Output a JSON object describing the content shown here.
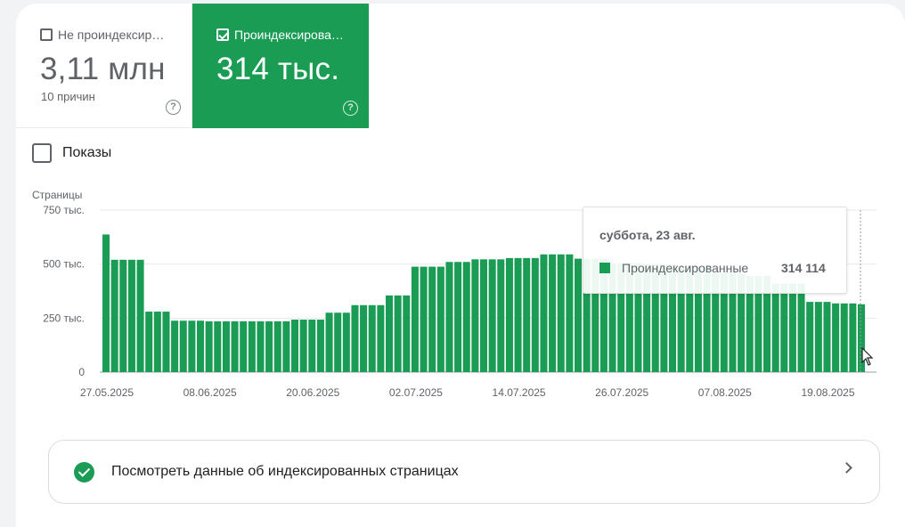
{
  "tiles": [
    {
      "label": "Не проиндексир…",
      "value": "3,11 млн",
      "sub": "10 причин",
      "checked": false
    },
    {
      "label": "Проиндексирова…",
      "value": "314 тыс.",
      "checked": true
    }
  ],
  "impressions_label": "Показы",
  "tooltip": {
    "date": "суббота, 23 авг.",
    "series": "Проиндексированные",
    "value": "314 114"
  },
  "link_text": "Посмотреть данные об индексированных страницах",
  "colors": {
    "accent": "#1a9c55"
  },
  "icons": {
    "help": "help-circle-icon",
    "check": "check-circle-icon",
    "chevron": "chevron-right-icon"
  },
  "chart_data": {
    "type": "bar",
    "ylabel": "Страницы",
    "ylim": [
      0,
      750000
    ],
    "y_ticks": [
      0,
      250000,
      500000,
      750000
    ],
    "y_tick_labels": [
      "0",
      "250 тыс.",
      "500 тыс.",
      "750 тыс."
    ],
    "x_tick_labels": [
      "27.05.2025",
      "08.06.2025",
      "20.06.2025",
      "02.07.2025",
      "14.07.2025",
      "26.07.2025",
      "07.08.2025",
      "19.08.2025"
    ],
    "series": [
      {
        "name": "Проиндексированные",
        "values": [
          637000,
          520000,
          520000,
          520000,
          520000,
          280000,
          280000,
          280000,
          238000,
          238000,
          238000,
          238000,
          235000,
          235000,
          235000,
          235000,
          235000,
          235000,
          235000,
          235000,
          235000,
          235000,
          243000,
          243000,
          243000,
          243000,
          275000,
          275000,
          275000,
          310000,
          310000,
          310000,
          310000,
          355000,
          355000,
          355000,
          488000,
          488000,
          488000,
          488000,
          510000,
          510000,
          510000,
          522000,
          522000,
          522000,
          522000,
          528000,
          528000,
          528000,
          528000,
          545000,
          545000,
          545000,
          545000,
          525000,
          525000,
          525000,
          525000,
          505000,
          505000,
          505000,
          505000,
          500000,
          500000,
          500000,
          500000,
          490000,
          490000,
          490000,
          490000,
          460000,
          460000,
          460000,
          460000,
          445000,
          445000,
          445000,
          410000,
          410000,
          410000,
          410000,
          325000,
          325000,
          325000,
          318000,
          318000,
          318000,
          314114
        ]
      }
    ],
    "hover_date": "23.08.2025"
  }
}
